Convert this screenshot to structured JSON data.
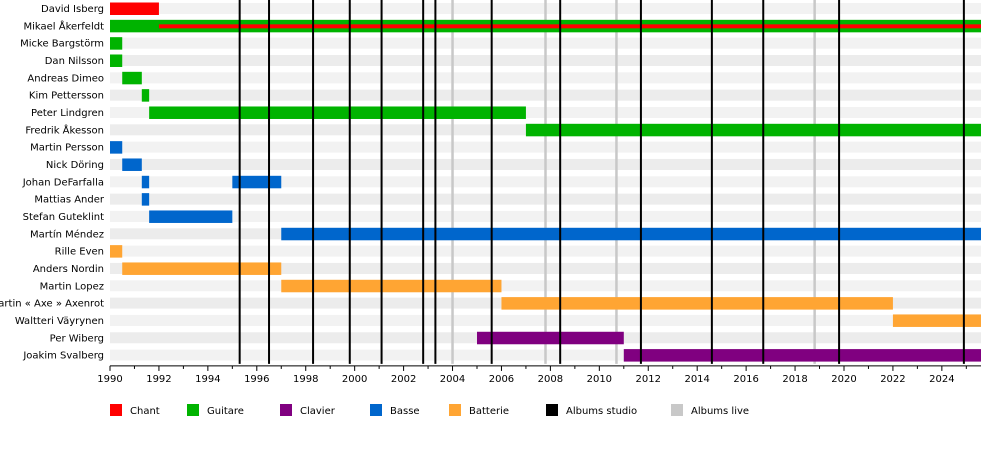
{
  "chart_data": {
    "type": "timeline",
    "xlim": [
      1990,
      2025.6
    ],
    "x_ticks": [
      "1990",
      "1992",
      "1994",
      "1996",
      "1998",
      "2000",
      "2002",
      "2004",
      "2006",
      "2008",
      "2010",
      "2012",
      "2014",
      "2016",
      "2018",
      "2020",
      "2022",
      "2024"
    ],
    "colors": {
      "Chant": "#ff0000",
      "Guitare": "#00b300",
      "Clavier": "#800080",
      "Basse": "#0066cc",
      "Batterie": "#ffa533",
      "Albums studio": "#000000",
      "Albums live": "#c8c8c8"
    },
    "legend": [
      {
        "label": "Chant",
        "key": "Chant"
      },
      {
        "label": "Guitare",
        "key": "Guitare"
      },
      {
        "label": "Clavier",
        "key": "Clavier"
      },
      {
        "label": "Basse",
        "key": "Basse"
      },
      {
        "label": "Batterie",
        "key": "Batterie"
      },
      {
        "label": "Albums studio",
        "key": "Albums studio"
      },
      {
        "label": "Albums live",
        "key": "Albums live"
      }
    ],
    "members": [
      {
        "name": "David Isberg",
        "bars": [
          {
            "role": "Chant",
            "start": 1990.0,
            "end": 1992.0
          }
        ]
      },
      {
        "name": "Mikael Åkerfeldt",
        "bars": [
          {
            "role": "Guitare",
            "start": 1990.0,
            "end": 2025.6
          },
          {
            "role": "Chant",
            "start": 1992.0,
            "end": 2025.6,
            "thin": true
          }
        ]
      },
      {
        "name": "Micke Bargstörm",
        "bars": [
          {
            "role": "Guitare",
            "start": 1990.0,
            "end": 1990.5
          }
        ]
      },
      {
        "name": "Dan Nilsson",
        "bars": [
          {
            "role": "Guitare",
            "start": 1990.0,
            "end": 1990.5
          }
        ]
      },
      {
        "name": "Andreas Dimeo",
        "bars": [
          {
            "role": "Guitare",
            "start": 1990.5,
            "end": 1991.3
          }
        ]
      },
      {
        "name": "Kim Pettersson",
        "bars": [
          {
            "role": "Guitare",
            "start": 1991.3,
            "end": 1991.6
          }
        ]
      },
      {
        "name": "Peter Lindgren",
        "bars": [
          {
            "role": "Guitare",
            "start": 1991.6,
            "end": 2007.0
          }
        ]
      },
      {
        "name": "Fredrik Åkesson",
        "bars": [
          {
            "role": "Guitare",
            "start": 2007.0,
            "end": 2025.6
          }
        ]
      },
      {
        "name": "Martin Persson",
        "bars": [
          {
            "role": "Basse",
            "start": 1990.0,
            "end": 1990.5
          }
        ]
      },
      {
        "name": "Nick Döring",
        "bars": [
          {
            "role": "Basse",
            "start": 1990.5,
            "end": 1991.3
          }
        ]
      },
      {
        "name": "Johan DeFarfalla",
        "bars": [
          {
            "role": "Basse",
            "start": 1991.3,
            "end": 1991.6
          },
          {
            "role": "Basse",
            "start": 1995.0,
            "end": 1997.0
          }
        ]
      },
      {
        "name": "Mattias Ander",
        "bars": [
          {
            "role": "Basse",
            "start": 1991.3,
            "end": 1991.6
          }
        ]
      },
      {
        "name": "Stefan Guteklint",
        "bars": [
          {
            "role": "Basse",
            "start": 1991.6,
            "end": 1995.0
          }
        ]
      },
      {
        "name": "Martín Méndez",
        "bars": [
          {
            "role": "Basse",
            "start": 1997.0,
            "end": 2025.6
          }
        ]
      },
      {
        "name": "Rille Even",
        "bars": [
          {
            "role": "Batterie",
            "start": 1990.0,
            "end": 1990.5
          }
        ]
      },
      {
        "name": "Anders Nordin",
        "bars": [
          {
            "role": "Batterie",
            "start": 1990.5,
            "end": 1997.0
          }
        ]
      },
      {
        "name": "Martin Lopez",
        "bars": [
          {
            "role": "Batterie",
            "start": 1997.0,
            "end": 2006.0
          }
        ]
      },
      {
        "name": "Martin « Axe » Axenrot",
        "bars": [
          {
            "role": "Batterie",
            "start": 2006.0,
            "end": 2022.0
          }
        ]
      },
      {
        "name": "Waltteri Väyrynen",
        "bars": [
          {
            "role": "Batterie",
            "start": 2022.0,
            "end": 2025.6
          }
        ]
      },
      {
        "name": "Per Wiberg",
        "bars": [
          {
            "role": "Clavier",
            "start": 2005.0,
            "end": 2011.0
          }
        ]
      },
      {
        "name": "Joakim Svalberg",
        "bars": [
          {
            "role": "Clavier",
            "start": 2011.0,
            "end": 2025.6
          }
        ]
      }
    ],
    "studio_albums": [
      1995.3,
      1996.5,
      1998.3,
      1999.8,
      2001.1,
      2002.8,
      2003.3,
      2005.6,
      2008.4,
      2011.7,
      2014.6,
      2016.7,
      2019.8,
      2024.9
    ],
    "live_albums": [
      2004.0,
      2007.8,
      2010.7,
      2018.8
    ]
  }
}
